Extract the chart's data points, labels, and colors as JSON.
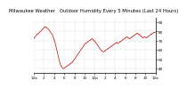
{
  "title": "Milwaukee Weather   Outdoor Humidity Every 5 Minutes (Last 24 Hours)",
  "ylim": [
    35,
    95
  ],
  "yticks": [
    40,
    50,
    60,
    70,
    80,
    90
  ],
  "ytick_labels": [
    "40",
    "50",
    "60",
    "70",
    "80",
    "90"
  ],
  "line_color": "#cc0000",
  "bg_color": "#ffffff",
  "plot_bg": "#ffffff",
  "grid_color": "#aaaaaa",
  "title_fontsize": 3.8,
  "tick_fontsize": 3.0,
  "humidity": [
    72,
    73,
    74,
    75,
    76,
    77,
    77,
    78,
    78,
    79,
    80,
    80,
    81,
    82,
    83,
    83,
    84,
    85,
    85,
    84,
    84,
    83,
    83,
    82,
    81,
    80,
    79,
    78,
    77,
    76,
    74,
    72,
    70,
    68,
    65,
    62,
    59,
    56,
    53,
    50,
    47,
    45,
    43,
    42,
    41,
    40,
    40,
    40,
    41,
    41,
    42,
    42,
    43,
    43,
    44,
    44,
    45,
    45,
    46,
    46,
    47,
    48,
    49,
    50,
    51,
    52,
    53,
    54,
    55,
    56,
    57,
    58,
    59,
    60,
    61,
    62,
    63,
    64,
    65,
    66,
    67,
    67,
    68,
    68,
    69,
    69,
    70,
    70,
    71,
    71,
    72,
    72,
    71,
    70,
    70,
    69,
    68,
    67,
    66,
    65,
    64,
    63,
    62,
    61,
    60,
    59,
    59,
    58,
    58,
    58,
    59,
    59,
    60,
    60,
    61,
    61,
    62,
    62,
    63,
    63,
    64,
    64,
    65,
    65,
    66,
    66,
    67,
    67,
    68,
    68,
    67,
    67,
    68,
    68,
    69,
    69,
    70,
    70,
    71,
    71,
    72,
    72,
    73,
    73,
    74,
    74,
    73,
    73,
    72,
    72,
    73,
    73,
    74,
    74,
    75,
    75,
    76,
    76,
    77,
    77,
    78,
    78,
    77,
    77,
    76,
    76,
    75,
    74,
    74,
    73,
    73,
    74,
    74,
    74,
    73,
    73,
    74,
    74,
    75,
    75,
    76,
    76,
    77,
    77,
    78,
    78,
    79,
    79,
    79,
    79
  ],
  "num_xticks": 13,
  "xtick_labels": [
    "12a",
    "2",
    "4",
    "6",
    "8",
    "10",
    "12p",
    "2",
    "4",
    "6",
    "8",
    "10",
    "12a"
  ]
}
